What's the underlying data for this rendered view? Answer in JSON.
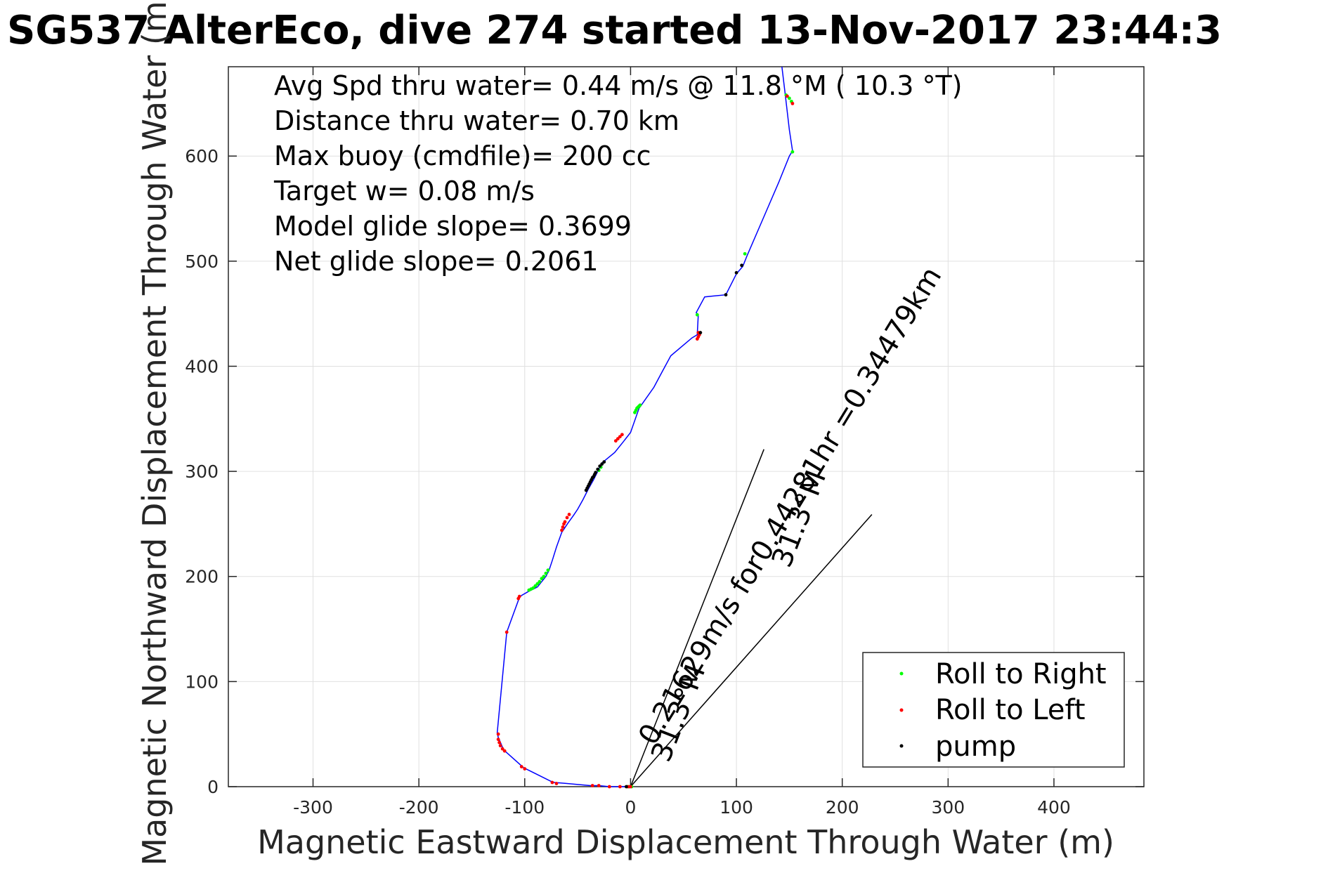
{
  "chart_data": {
    "type": "scatter",
    "title": "SG537 AlterEco, dive 274 started 13-Nov-2017 23:44:3",
    "xlabel": "Magnetic Eastward Displacement Through Water (m)",
    "ylabel": "Magnetic Northward Displacement Through Water (m)",
    "xlim": [
      -380,
      485
    ],
    "ylim": [
      0,
      685
    ],
    "xticks": [
      -300,
      -200,
      -100,
      0,
      100,
      200,
      300,
      400
    ],
    "yticks": [
      0,
      100,
      200,
      300,
      400,
      500,
      600
    ],
    "xtick_labels": [
      "-300",
      "-200",
      "-100",
      "0",
      "100",
      "200",
      "300",
      "400"
    ],
    "ytick_labels": [
      "0",
      "100",
      "200",
      "300",
      "400",
      "500",
      "600"
    ],
    "grid": true,
    "legend_position": "bottom-right",
    "stats": [
      "Avg Spd thru water=  0.44 m/s @  11.8 °M ( 10.3 °T)",
      "Distance thru water=  0.70 km",
      "Max buoy (cmdfile)= 200 cc",
      "Target w= 0.08 m/s",
      "Model glide slope= 0.3699",
      "Net glide slope= 0.2061"
    ],
    "track": {
      "color": "#0000ff",
      "x": [
        0,
        -10,
        -20,
        -30,
        -38,
        -60,
        -72,
        -75,
        -99,
        -101,
        -120,
        -122,
        -125,
        -126,
        -117,
        -105,
        -103,
        -96,
        -88,
        -84,
        -80,
        -77,
        -74,
        -70,
        -65,
        -59,
        -54,
        -50,
        -45,
        -40,
        -35,
        -30,
        -27,
        -15,
        -7,
        0,
        8,
        15,
        22,
        30,
        38,
        58,
        63,
        64,
        62,
        70,
        90,
        100,
        106,
        110,
        125,
        140,
        150,
        153,
        150,
        146,
        143
      ],
      "y": [
        0,
        0,
        0,
        1,
        1,
        3,
        4,
        5,
        17,
        18,
        35,
        40,
        47,
        51,
        147,
        180,
        182,
        186,
        190,
        195,
        200,
        206,
        215,
        228,
        242,
        251,
        258,
        264,
        273,
        283,
        292,
        302,
        308,
        318,
        328,
        337,
        360,
        370,
        380,
        395,
        410,
        427,
        430,
        449,
        451,
        466,
        468,
        488,
        495,
        505,
        540,
        575,
        600,
        605,
        625,
        660,
        685
      ]
    },
    "series": [
      {
        "name": "Roll to Right",
        "color": "#00ff00",
        "x": [
          -3,
          -1,
          1,
          -96,
          -94,
          -92,
          -90,
          -88,
          -86,
          -84,
          -82,
          -80,
          -78,
          -30,
          -28,
          4,
          5,
          6,
          7,
          8,
          9,
          63,
          147,
          150,
          152,
          153,
          108
        ],
        "y": [
          0,
          0,
          0,
          187,
          188,
          189,
          191,
          193,
          195,
          198,
          200,
          203,
          206,
          301,
          304,
          356,
          358,
          360,
          361,
          362,
          363,
          449,
          658,
          655,
          652,
          604,
          507
        ]
      },
      {
        "name": "Roll to Left",
        "color": "#ff0000",
        "x": [
          0,
          -2,
          -10,
          -20,
          -30,
          -36,
          -70,
          -74,
          -100,
          -103,
          -119,
          -121,
          -123,
          -124,
          -125,
          -125,
          -117,
          -106,
          -105,
          -58,
          -60,
          -62,
          -63,
          -64,
          -65,
          -8,
          -10,
          -12,
          -14,
          63,
          64,
          65,
          64,
          153,
          148
        ],
        "y": [
          0,
          0,
          0,
          0,
          1,
          1,
          3,
          4,
          17,
          19,
          34,
          36,
          39,
          42,
          45,
          50,
          147,
          179,
          181,
          259,
          256,
          252,
          250,
          247,
          244,
          335,
          333,
          331,
          329,
          426,
          428,
          430,
          432,
          650,
          657
        ]
      },
      {
        "name": "pump",
        "color": "#000000",
        "x": [
          -42,
          -41,
          -40,
          -39,
          -38,
          -37,
          -36,
          -35,
          -34,
          -33,
          -31,
          -29,
          -27,
          -25,
          90,
          100,
          105,
          66,
          -4
        ],
        "y": [
          282,
          284,
          286,
          288,
          290,
          292,
          294,
          295,
          297,
          299,
          302,
          305,
          307,
          309,
          468,
          489,
          496,
          432,
          0
        ]
      }
    ],
    "current_lines": [
      {
        "x": [
          0,
          126
        ],
        "y": [
          0,
          321
        ]
      },
      {
        "x": [
          0,
          228
        ],
        "y": [
          0,
          259
        ]
      }
    ],
    "annotations": [
      {
        "text": "31.3°M",
        "x": 36,
        "y": 22,
        "angle_deg": -68.6
      },
      {
        "text": "31.3°M",
        "x": 150,
        "y": 207,
        "angle_deg": -68.6
      },
      {
        "text": "0.21629m/s for0.44281hr =0.34479km",
        "x": 22,
        "y": 38,
        "angle_deg": -58.6
      }
    ],
    "legend": [
      "Roll to Right",
      "Roll to Left",
      "pump"
    ]
  }
}
